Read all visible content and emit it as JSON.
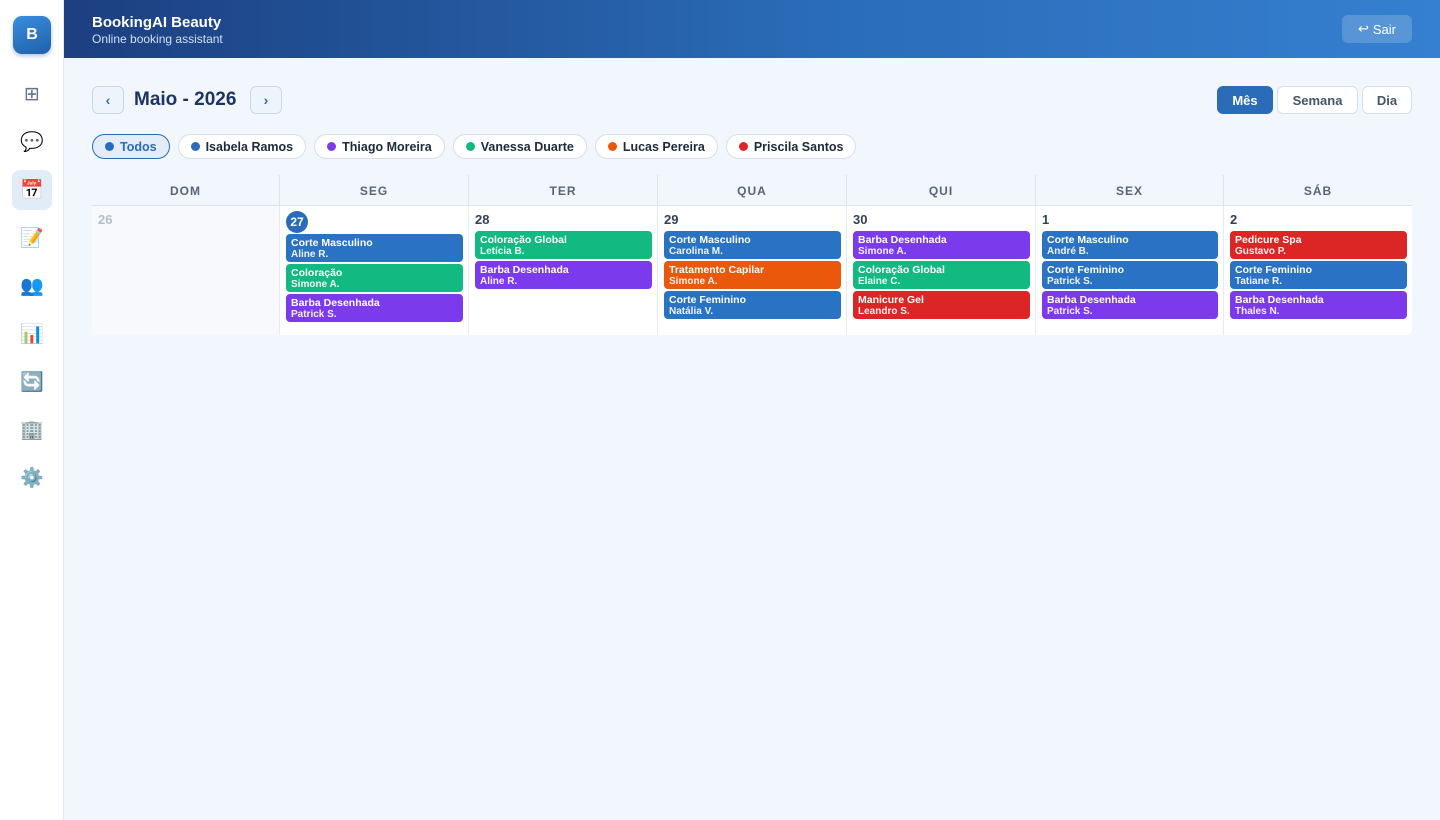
{
  "app": {
    "logo_letter": "B",
    "title": "BookingAI Beauty",
    "subtitle": "Online booking assistant"
  },
  "header": {
    "logout_icon": "↩",
    "logout_label": "Sair"
  },
  "sidebar": {
    "items": [
      {
        "icon": "⊞",
        "name": "dashboard-icon"
      },
      {
        "icon": "💬",
        "name": "chat-icon"
      },
      {
        "icon": "📅",
        "name": "calendar-icon",
        "active": true
      },
      {
        "icon": "📝",
        "name": "notes-icon"
      },
      {
        "icon": "👥",
        "name": "clients-icon"
      },
      {
        "icon": "📊",
        "name": "reports-icon"
      },
      {
        "icon": "🔄",
        "name": "sync-icon"
      },
      {
        "icon": "🏢",
        "name": "business-icon"
      },
      {
        "icon": "⚙️",
        "name": "settings-icon"
      }
    ]
  },
  "toolbar": {
    "prev": "‹",
    "next": "›",
    "month_title": "Maio - 2026"
  },
  "views": [
    {
      "label": "Mês",
      "active": true
    },
    {
      "label": "Semana"
    },
    {
      "label": "Dia"
    }
  ],
  "filters": [
    {
      "label": "Todos",
      "color": "#2a6cb8",
      "active": true
    },
    {
      "label": "Isabela Ramos",
      "color": "#2a6cb8"
    },
    {
      "label": "Thiago Moreira",
      "color": "#7c3aed"
    },
    {
      "label": "Vanessa Duarte",
      "color": "#10b981"
    },
    {
      "label": "Lucas Pereira",
      "color": "#ea580c"
    },
    {
      "label": "Priscila Santos",
      "color": "#dc2626"
    }
  ],
  "weekdays": [
    "DOM",
    "SEG",
    "TER",
    "QUA",
    "QUI",
    "SEX",
    "SÁB"
  ],
  "days": [
    {
      "num": "26",
      "muted": true,
      "events": []
    },
    {
      "num": "27",
      "today": true,
      "events": [
        {
          "service": "Corte Masculino",
          "client": "Aline R.",
          "color": "#2a72c3"
        },
        {
          "service": "Coloração",
          "client": "Simone A.",
          "color": "#12b981"
        },
        {
          "service": "Barba Desenhada",
          "client": "Patrick S.",
          "color": "#7c3aed"
        }
      ]
    },
    {
      "num": "28",
      "events": [
        {
          "service": "Coloração Global",
          "client": "Letícia B.",
          "color": "#12b981"
        },
        {
          "service": "Barba Desenhada",
          "client": "Aline R.",
          "color": "#7c3aed"
        }
      ]
    },
    {
      "num": "29",
      "events": [
        {
          "service": "Corte Masculino",
          "client": "Carolina M.",
          "color": "#2a72c3"
        },
        {
          "service": "Tratamento Capilar",
          "client": "Simone A.",
          "color": "#ea580c"
        },
        {
          "service": "Corte Feminino",
          "client": "Natália V.",
          "color": "#2a72c3"
        }
      ]
    },
    {
      "num": "30",
      "events": [
        {
          "service": "Barba Desenhada",
          "client": "Simone A.",
          "color": "#7c3aed"
        },
        {
          "service": "Coloração Global",
          "client": "Elaine C.",
          "color": "#12b981"
        },
        {
          "service": "Manicure Gel",
          "client": "Leandro S.",
          "color": "#dc2626"
        }
      ]
    },
    {
      "num": "1",
      "events": [
        {
          "service": "Corte Masculino",
          "client": "André B.",
          "color": "#2a72c3"
        },
        {
          "service": "Corte Feminino",
          "client": "Patrick S.",
          "color": "#2a72c3"
        },
        {
          "service": "Barba Desenhada",
          "client": "Patrick S.",
          "color": "#7c3aed"
        }
      ]
    },
    {
      "num": "2",
      "events": [
        {
          "service": "Pedicure Spa",
          "client": "Gustavo P.",
          "color": "#dc2626"
        },
        {
          "service": "Corte Feminino",
          "client": "Tatiane R.",
          "color": "#2a72c3"
        },
        {
          "service": "Barba Desenhada",
          "client": "Thales N.",
          "color": "#7c3aed"
        }
      ]
    }
  ]
}
